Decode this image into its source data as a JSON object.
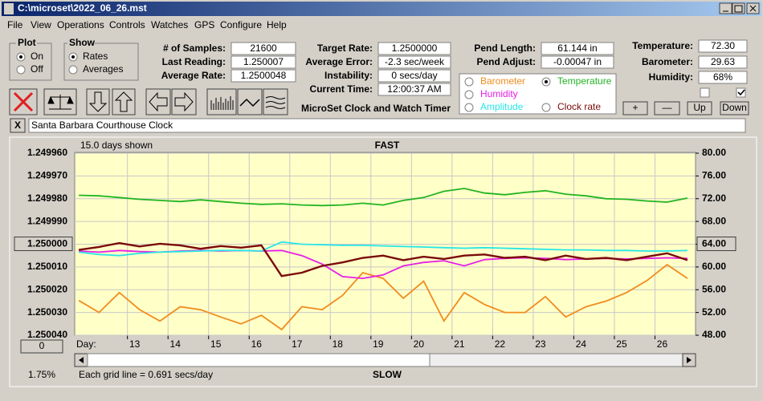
{
  "window": {
    "title": "C:\\microset\\2022_06_26.mst",
    "menu": [
      "File",
      "View",
      "Operations",
      "Controls",
      "Watches",
      "GPS",
      "Configure",
      "Help"
    ]
  },
  "plot_group": {
    "title": "Plot",
    "options": [
      "On",
      "Off"
    ]
  },
  "show_group": {
    "title": "Show",
    "options": [
      "Rates",
      "Averages"
    ]
  },
  "fields": [
    {
      "label": "# of Samples:",
      "value": "21600"
    },
    {
      "label": "Last Reading:",
      "value": "1.250007"
    },
    {
      "label": "Average Rate:",
      "value": "1.2500048"
    },
    {
      "label": "Target Rate:",
      "value": "1.2500000"
    },
    {
      "label": "Average Error:",
      "value": "-2.3 sec/week"
    },
    {
      "label": "Instability:",
      "value": "0 secs/day"
    },
    {
      "label": "Current Time:",
      "value": "12:00:37 AM"
    },
    {
      "label": "Pend Length:",
      "value": "61.144 in"
    },
    {
      "label": "Pend Adjust:",
      "value": "-0.00047 in"
    },
    {
      "label": "Temperature:",
      "value": "72.30"
    },
    {
      "label": "Barometer:",
      "value": "29.63"
    },
    {
      "label": "Humidity:",
      "value": "68%"
    }
  ],
  "app_title": "MicroSet Clock and Watch Timer",
  "buttons": [
    "+",
    "—",
    "Up",
    "Down"
  ],
  "close_button": "X",
  "description": "Santa Barbara Courthouse Clock",
  "chart_panel": {
    "days_shown": "15.0 days shown",
    "top_label": "FAST",
    "bottom_label": "SLOW",
    "grid_note": "Each grid line = 0.691 secs/day",
    "day_label": "Day:",
    "percent": "1.75%",
    "offset_button": "0"
  },
  "chart_data": {
    "type": "line",
    "x": [
      11.8,
      12.3,
      12.8,
      13.3,
      13.8,
      14.3,
      14.8,
      15.3,
      15.8,
      16.3,
      16.8,
      17.3,
      17.8,
      18.3,
      18.8,
      19.3,
      19.8,
      20.3,
      20.8,
      21.3,
      21.8,
      22.3,
      22.8,
      23.3,
      23.8,
      24.3,
      24.8,
      25.3,
      25.8,
      26.3,
      26.8
    ],
    "xlim": [
      11.7,
      27.0
    ],
    "xticks": [
      13,
      14,
      15,
      16,
      17,
      18,
      19,
      20,
      21,
      22,
      23,
      24,
      25,
      26
    ],
    "ylim": [
      1.24996,
      1.25004
    ],
    "y_inverted": true,
    "yticks": [
      {
        "value": 1.24996,
        "label": "1.249960"
      },
      {
        "value": 1.24997,
        "label": "1.249970"
      },
      {
        "value": 1.24998,
        "label": "1.249980"
      },
      {
        "value": 1.24999,
        "label": "1.249990"
      },
      {
        "value": 1.25,
        "label": "1.250000"
      },
      {
        "value": 1.25001,
        "label": "1.250010"
      },
      {
        "value": 1.25002,
        "label": "1.250020"
      },
      {
        "value": 1.25003,
        "label": "1.250030"
      },
      {
        "value": 1.25004,
        "label": "1.250040"
      }
    ],
    "y2lim": [
      48,
      80
    ],
    "y2ticks": [
      {
        "value": 80,
        "label": "80.00"
      },
      {
        "value": 76,
        "label": "76.00"
      },
      {
        "value": 72,
        "label": "72.00"
      },
      {
        "value": 68,
        "label": "68.00"
      },
      {
        "value": 64,
        "label": "64.00"
      },
      {
        "value": 60,
        "label": "60.00"
      },
      {
        "value": 56,
        "label": "56.00"
      },
      {
        "value": 52,
        "label": "52.00"
      },
      {
        "value": 48,
        "label": "48.00"
      }
    ],
    "grid": true,
    "series": [
      {
        "name": "Barometer",
        "color": "#f08c1e",
        "axis": "y2",
        "values": [
          54.1,
          52.0,
          55.5,
          52.5,
          50.5,
          53.0,
          52.5,
          51.2,
          50.0,
          51.5,
          49.0,
          53.0,
          52.5,
          55.0,
          59.0,
          58.0,
          54.5,
          57.5,
          50.5,
          55.5,
          53.4,
          52.0,
          52.0,
          54.8,
          51.2,
          53.0,
          54.0,
          55.5,
          57.6,
          60.4,
          58.0
        ]
      },
      {
        "name": "Temperature",
        "color": "#22b422",
        "axis": "y2",
        "values": [
          72.6,
          72.5,
          72.2,
          71.9,
          71.7,
          71.5,
          71.8,
          71.5,
          71.2,
          71.0,
          71.1,
          70.9,
          70.8,
          70.9,
          71.2,
          70.9,
          71.7,
          72.2,
          73.3,
          73.8,
          73.0,
          72.7,
          73.1,
          73.4,
          72.8,
          72.5,
          72.0,
          71.9,
          71.6,
          71.4,
          72.1
        ]
      },
      {
        "name": "Humidity",
        "color": "#e61ee6",
        "axis": "y2",
        "values": [
          62.8,
          62.6,
          62.9,
          62.7,
          62.6,
          62.8,
          62.9,
          62.8,
          62.9,
          62.8,
          62.9,
          62.0,
          60.5,
          58.3,
          58.0,
          58.6,
          60.2,
          60.8,
          61.1,
          60.2,
          61.3,
          61.5,
          61.6,
          61.5,
          61.3,
          61.4,
          61.5,
          61.4,
          61.5,
          61.6,
          61.5
        ]
      },
      {
        "name": "Amplitude",
        "color": "#28e6e6",
        "axis": "y2",
        "values": [
          62.6,
          62.2,
          62.0,
          62.4,
          62.6,
          62.7,
          62.8,
          62.9,
          62.9,
          62.8,
          64.4,
          64.0,
          63.9,
          63.8,
          63.8,
          63.7,
          63.6,
          63.5,
          63.4,
          63.3,
          63.4,
          63.3,
          63.2,
          63.1,
          63.0,
          63.0,
          62.9,
          62.9,
          62.8,
          62.8,
          62.9
        ]
      },
      {
        "name": "Clock rate",
        "color": "#7a0a0a",
        "values": [
          1.2500025,
          1.2500012,
          1.2499995,
          1.250001,
          1.2499998,
          1.2500005,
          1.250002,
          1.2500008,
          1.2500015,
          1.2500005,
          1.250014,
          1.2500125,
          1.2500095,
          1.250008,
          1.250006,
          1.250005,
          1.250007,
          1.2500055,
          1.2500065,
          1.250005,
          1.2500045,
          1.250006,
          1.2500055,
          1.250007,
          1.250005,
          1.2500065,
          1.250006,
          1.250007,
          1.2500055,
          1.250004,
          1.250007
        ]
      }
    ]
  }
}
